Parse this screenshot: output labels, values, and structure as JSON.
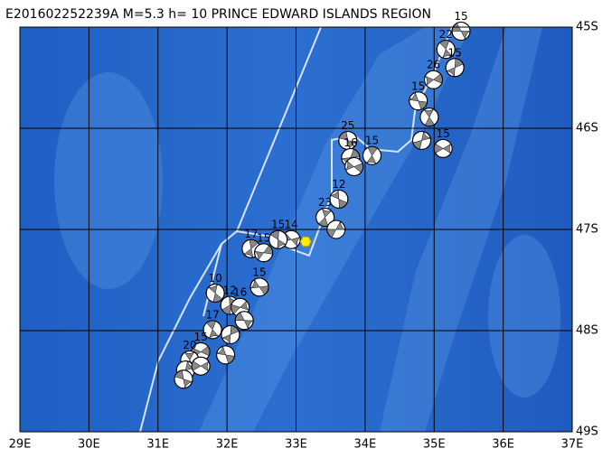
{
  "map": {
    "title": "E201602252239A  M=5.3  h= 10  PRINCE EDWARD ISLANDS REGION",
    "xlim": [
      29,
      37
    ],
    "ylim": [
      45,
      49
    ],
    "xticks": [
      {
        "value": 29,
        "label": "29E"
      },
      {
        "value": 30,
        "label": "30E"
      },
      {
        "value": 31,
        "label": "31E"
      },
      {
        "value": 32,
        "label": "32E"
      },
      {
        "value": 33,
        "label": "33E"
      },
      {
        "value": 34,
        "label": "34E"
      },
      {
        "value": 35,
        "label": "35E"
      },
      {
        "value": 36,
        "label": "36E"
      },
      {
        "value": 37,
        "label": "37E"
      }
    ],
    "yticks": [
      {
        "value": 45,
        "label": "45S"
      },
      {
        "value": 46,
        "label": "46S"
      },
      {
        "value": 47,
        "label": "47S"
      },
      {
        "value": 48,
        "label": "48S"
      },
      {
        "value": 49,
        "label": "49S"
      }
    ],
    "epicenter": {
      "lon": 33.14,
      "lat": 47.12,
      "color": "#ffee00"
    },
    "events": [
      {
        "depth": "15",
        "lon": 35.39,
        "lat": 45.04
      },
      {
        "depth": "22",
        "lon": 35.17,
        "lat": 45.22
      },
      {
        "depth": "15",
        "lon": 35.3,
        "lat": 45.4
      },
      {
        "depth": "26",
        "lon": 34.99,
        "lat": 45.52
      },
      {
        "depth": "15",
        "lon": 34.77,
        "lat": 45.73
      },
      {
        "lon": 34.93,
        "lat": 45.89
      },
      {
        "lon": 34.82,
        "lat": 46.12
      },
      {
        "depth": "15",
        "lon": 35.13,
        "lat": 46.2
      },
      {
        "depth": "25",
        "lon": 33.75,
        "lat": 46.12
      },
      {
        "depth": "15",
        "lon": 34.1,
        "lat": 46.27
      },
      {
        "depth": "16",
        "lon": 33.79,
        "lat": 46.29
      },
      {
        "lon": 33.84,
        "lat": 46.38
      },
      {
        "depth": "12",
        "lon": 33.62,
        "lat": 46.7
      },
      {
        "depth": "23",
        "lon": 33.42,
        "lat": 46.88
      },
      {
        "lon": 33.58,
        "lat": 47.0
      },
      {
        "depth": "14",
        "lon": 32.93,
        "lat": 47.1
      },
      {
        "depth": "15",
        "lon": 32.74,
        "lat": 47.1
      },
      {
        "depth": "17",
        "lon": 32.35,
        "lat": 47.19
      },
      {
        "depth": "15",
        "lon": 32.53,
        "lat": 47.23
      },
      {
        "depth": "15",
        "lon": 32.47,
        "lat": 47.57
      },
      {
        "depth": "10",
        "lon": 31.83,
        "lat": 47.63
      },
      {
        "depth": "12",
        "lon": 32.04,
        "lat": 47.75
      },
      {
        "depth": "16",
        "lon": 32.19,
        "lat": 47.77
      },
      {
        "lon": 32.25,
        "lat": 47.9
      },
      {
        "depth": "17",
        "lon": 31.79,
        "lat": 47.99
      },
      {
        "lon": 32.05,
        "lat": 48.04
      },
      {
        "depth": "15",
        "lon": 31.62,
        "lat": 48.21
      },
      {
        "lon": 31.98,
        "lat": 48.24
      },
      {
        "depth": "20",
        "lon": 31.46,
        "lat": 48.29
      },
      {
        "lon": 31.4,
        "lat": 48.39
      },
      {
        "lon": 31.62,
        "lat": 48.35
      },
      {
        "lon": 31.37,
        "lat": 48.48
      }
    ]
  }
}
